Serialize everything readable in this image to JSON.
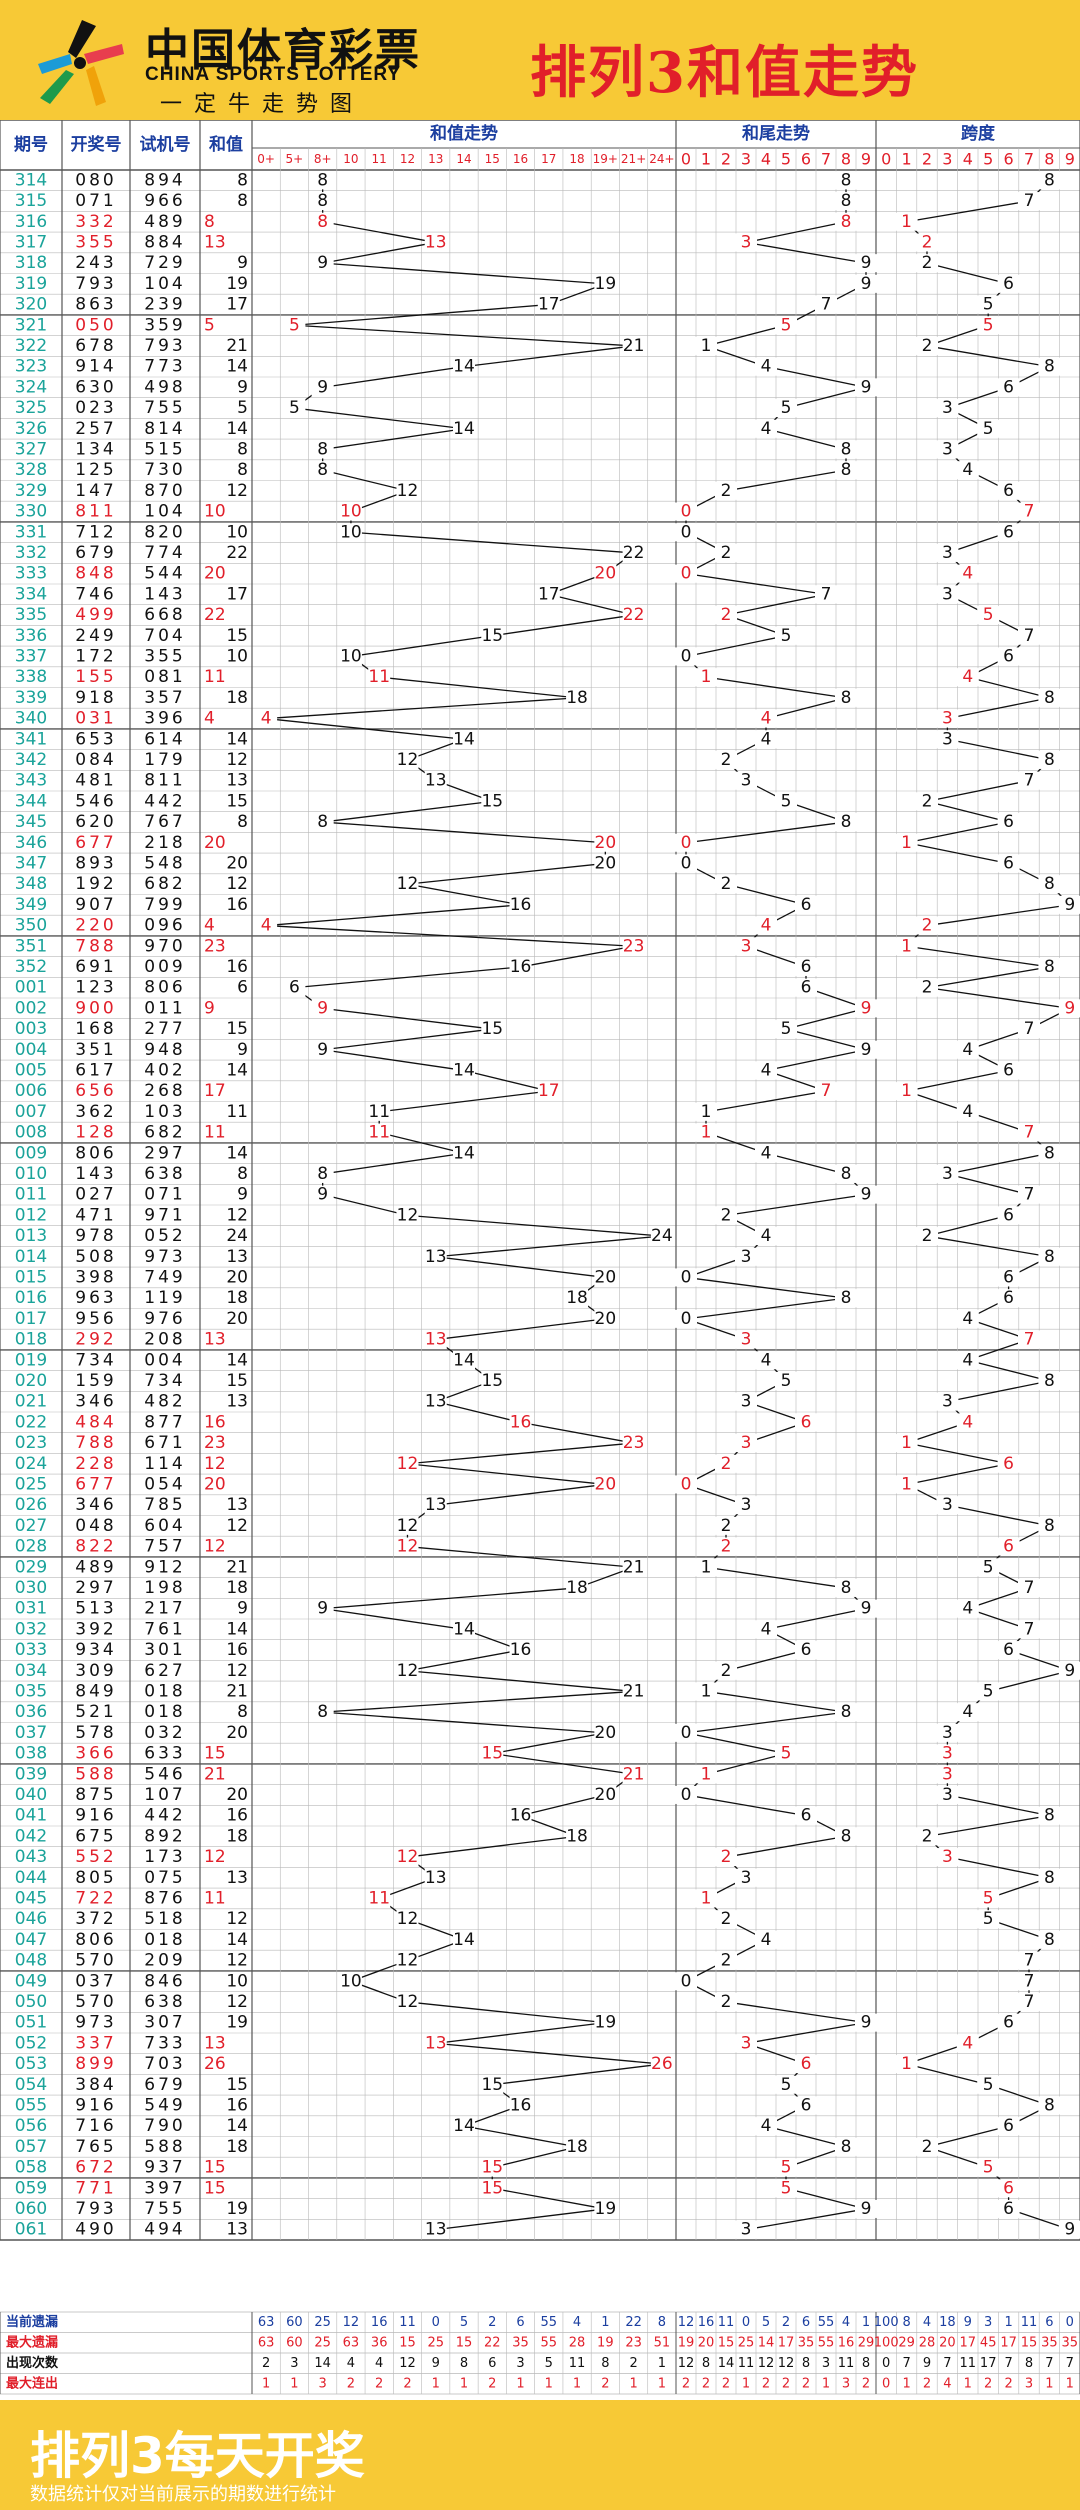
{
  "header": {
    "logo_cn": "中国体育彩票",
    "logo_en": "CHINA SPORTS LOTTERY",
    "logo_slogan": "一定牛走势图",
    "title": "排列3和值走势"
  },
  "footer": {
    "title": "排列3每天开奖",
    "note": "数据统计仅对当前展示的期数进行统计"
  },
  "colors": {
    "background": "#f7c936",
    "red": "#e11f2a",
    "green": "#1aa39a",
    "grid": "#b9b9b9",
    "line": "#000000"
  },
  "table": {
    "col_headers": {
      "issue": "期号",
      "winning": "开奖号",
      "trial": "试机号",
      "sum": "和值",
      "sum_trend": "和值走势",
      "tail_trend": "和尾走势",
      "span": "跨度"
    },
    "sum_bins": [
      "0+",
      "5+",
      "8+",
      "10",
      "11",
      "12",
      "13",
      "14",
      "15",
      "16",
      "17",
      "18",
      "19+",
      "21+",
      "24+"
    ],
    "tail_bins": [
      "0",
      "1",
      "2",
      "3",
      "4",
      "5",
      "6",
      "7",
      "8",
      "9"
    ],
    "span_bins": [
      "0",
      "1",
      "2",
      "3",
      "4",
      "5",
      "6",
      "7",
      "8",
      "9"
    ],
    "rows": [
      [
        "314",
        "080",
        "894",
        "8",
        0
      ],
      [
        "315",
        "071",
        "966",
        "8",
        0
      ],
      [
        "316",
        "332",
        "489",
        "8",
        1
      ],
      [
        "317",
        "355",
        "884",
        "13",
        1
      ],
      [
        "318",
        "243",
        "729",
        "9",
        0
      ],
      [
        "319",
        "793",
        "104",
        "19",
        0
      ],
      [
        "320",
        "863",
        "239",
        "17",
        0
      ],
      [
        "321",
        "050",
        "359",
        "5",
        1
      ],
      [
        "322",
        "678",
        "793",
        "21",
        0
      ],
      [
        "323",
        "914",
        "773",
        "14",
        0
      ],
      [
        "324",
        "630",
        "498",
        "9",
        0
      ],
      [
        "325",
        "023",
        "755",
        "5",
        0
      ],
      [
        "326",
        "257",
        "814",
        "14",
        0
      ],
      [
        "327",
        "134",
        "515",
        "8",
        0
      ],
      [
        "328",
        "125",
        "730",
        "8",
        0
      ],
      [
        "329",
        "147",
        "870",
        "12",
        0
      ],
      [
        "330",
        "811",
        "104",
        "10",
        1
      ],
      [
        "331",
        "712",
        "820",
        "10",
        0
      ],
      [
        "332",
        "679",
        "774",
        "22",
        0
      ],
      [
        "333",
        "848",
        "544",
        "20",
        1
      ],
      [
        "334",
        "746",
        "143",
        "17",
        0
      ],
      [
        "335",
        "499",
        "668",
        "22",
        1
      ],
      [
        "336",
        "249",
        "704",
        "15",
        0
      ],
      [
        "337",
        "172",
        "355",
        "10",
        0
      ],
      [
        "338",
        "155",
        "081",
        "11",
        1
      ],
      [
        "339",
        "918",
        "357",
        "18",
        0
      ],
      [
        "340",
        "031",
        "396",
        "4",
        1
      ],
      [
        "341",
        "653",
        "614",
        "14",
        0
      ],
      [
        "342",
        "084",
        "179",
        "12",
        0
      ],
      [
        "343",
        "481",
        "811",
        "13",
        0
      ],
      [
        "344",
        "546",
        "442",
        "15",
        0
      ],
      [
        "345",
        "620",
        "767",
        "8",
        0
      ],
      [
        "346",
        "677",
        "218",
        "20",
        1
      ],
      [
        "347",
        "893",
        "548",
        "20",
        0
      ],
      [
        "348",
        "192",
        "682",
        "12",
        0
      ],
      [
        "349",
        "907",
        "799",
        "16",
        0
      ],
      [
        "350",
        "220",
        "096",
        "4",
        1
      ],
      [
        "351",
        "788",
        "970",
        "23",
        1
      ],
      [
        "352",
        "691",
        "009",
        "16",
        0
      ],
      [
        "001",
        "123",
        "806",
        "6",
        0
      ],
      [
        "002",
        "900",
        "011",
        "9",
        1
      ],
      [
        "003",
        "168",
        "277",
        "15",
        0
      ],
      [
        "004",
        "351",
        "948",
        "9",
        0
      ],
      [
        "005",
        "617",
        "402",
        "14",
        0
      ],
      [
        "006",
        "656",
        "268",
        "17",
        1
      ],
      [
        "007",
        "362",
        "103",
        "11",
        0
      ],
      [
        "008",
        "128",
        "682",
        "11",
        1
      ],
      [
        "009",
        "806",
        "297",
        "14",
        0
      ],
      [
        "010",
        "143",
        "638",
        "8",
        0
      ],
      [
        "011",
        "027",
        "071",
        "9",
        0
      ],
      [
        "012",
        "471",
        "971",
        "12",
        0
      ],
      [
        "013",
        "978",
        "052",
        "24",
        0
      ],
      [
        "014",
        "508",
        "973",
        "13",
        0
      ],
      [
        "015",
        "398",
        "749",
        "20",
        0
      ],
      [
        "016",
        "963",
        "119",
        "18",
        0
      ],
      [
        "017",
        "956",
        "976",
        "20",
        0
      ],
      [
        "018",
        "292",
        "208",
        "13",
        1
      ],
      [
        "019",
        "734",
        "004",
        "14",
        0
      ],
      [
        "020",
        "159",
        "734",
        "15",
        0
      ],
      [
        "021",
        "346",
        "482",
        "13",
        0
      ],
      [
        "022",
        "484",
        "877",
        "16",
        1
      ],
      [
        "023",
        "788",
        "671",
        "23",
        1
      ],
      [
        "024",
        "228",
        "114",
        "12",
        1
      ],
      [
        "025",
        "677",
        "054",
        "20",
        1
      ],
      [
        "026",
        "346",
        "785",
        "13",
        0
      ],
      [
        "027",
        "048",
        "604",
        "12",
        0
      ],
      [
        "028",
        "822",
        "757",
        "12",
        1
      ],
      [
        "029",
        "489",
        "912",
        "21",
        0
      ],
      [
        "030",
        "297",
        "198",
        "18",
        0
      ],
      [
        "031",
        "513",
        "217",
        "9",
        0
      ],
      [
        "032",
        "392",
        "761",
        "14",
        0
      ],
      [
        "033",
        "934",
        "301",
        "16",
        0
      ],
      [
        "034",
        "309",
        "627",
        "12",
        0
      ],
      [
        "035",
        "849",
        "018",
        "21",
        0
      ],
      [
        "036",
        "521",
        "018",
        "8",
        0
      ],
      [
        "037",
        "578",
        "032",
        "20",
        0
      ],
      [
        "038",
        "366",
        "633",
        "15",
        1
      ],
      [
        "039",
        "588",
        "546",
        "21",
        1
      ],
      [
        "040",
        "875",
        "107",
        "20",
        0
      ],
      [
        "041",
        "916",
        "442",
        "16",
        0
      ],
      [
        "042",
        "675",
        "892",
        "18",
        0
      ],
      [
        "043",
        "552",
        "173",
        "12",
        1
      ],
      [
        "044",
        "805",
        "075",
        "13",
        0
      ],
      [
        "045",
        "722",
        "876",
        "11",
        1
      ],
      [
        "046",
        "372",
        "518",
        "12",
        0
      ],
      [
        "047",
        "806",
        "018",
        "14",
        0
      ],
      [
        "048",
        "570",
        "209",
        "12",
        0
      ],
      [
        "049",
        "037",
        "846",
        "10",
        0
      ],
      [
        "050",
        "570",
        "638",
        "12",
        0
      ],
      [
        "051",
        "973",
        "307",
        "19",
        0
      ],
      [
        "052",
        "337",
        "733",
        "13",
        1
      ],
      [
        "053",
        "899",
        "703",
        "26",
        1
      ],
      [
        "054",
        "384",
        "679",
        "15",
        0
      ],
      [
        "055",
        "916",
        "549",
        "16",
        0
      ],
      [
        "056",
        "716",
        "790",
        "14",
        0
      ],
      [
        "057",
        "765",
        "588",
        "18",
        0
      ],
      [
        "058",
        "672",
        "937",
        "15",
        1
      ],
      [
        "059",
        "771",
        "397",
        "15",
        1
      ],
      [
        "060",
        "793",
        "755",
        "19",
        0
      ],
      [
        "061",
        "490",
        "494",
        "13",
        0
      ]
    ]
  },
  "stats": {
    "labels": [
      "当前遗漏",
      "最大遗漏",
      "出现次数",
      "最大连出"
    ],
    "sum": [
      [
        "63",
        "60",
        "25",
        "12",
        "16",
        "11",
        "0",
        "5",
        "2",
        "6",
        "55",
        "4",
        "1",
        "22",
        "8"
      ],
      [
        "63",
        "60",
        "25",
        "63",
        "36",
        "15",
        "25",
        "15",
        "22",
        "35",
        "55",
        "28",
        "19",
        "23",
        "51"
      ],
      [
        "2",
        "3",
        "14",
        "4",
        "4",
        "12",
        "9",
        "8",
        "6",
        "3",
        "5",
        "11",
        "8",
        "2",
        "1"
      ],
      [
        "1",
        "1",
        "3",
        "2",
        "2",
        "2",
        "1",
        "1",
        "2",
        "1",
        "1",
        "1",
        "2",
        "1",
        "1"
      ]
    ],
    "tail": [
      [
        "12",
        "16",
        "11",
        "0",
        "5",
        "2",
        "6",
        "55",
        "4",
        "1"
      ],
      [
        "19",
        "20",
        "15",
        "25",
        "14",
        "17",
        "35",
        "55",
        "16",
        "29"
      ],
      [
        "12",
        "8",
        "14",
        "11",
        "12",
        "12",
        "8",
        "3",
        "11",
        "8"
      ],
      [
        "2",
        "2",
        "2",
        "1",
        "2",
        "2",
        "2",
        "1",
        "3",
        "2"
      ]
    ],
    "span": [
      [
        "100",
        "8",
        "4",
        "18",
        "9",
        "3",
        "1",
        "11",
        "6",
        "0"
      ],
      [
        "100",
        "29",
        "28",
        "20",
        "17",
        "45",
        "17",
        "15",
        "35",
        "35"
      ],
      [
        "0",
        "7",
        "9",
        "7",
        "11",
        "17",
        "7",
        "8",
        "7",
        "7"
      ],
      [
        "0",
        "1",
        "2",
        "4",
        "1",
        "2",
        "2",
        "3",
        "1",
        "1"
      ]
    ]
  }
}
